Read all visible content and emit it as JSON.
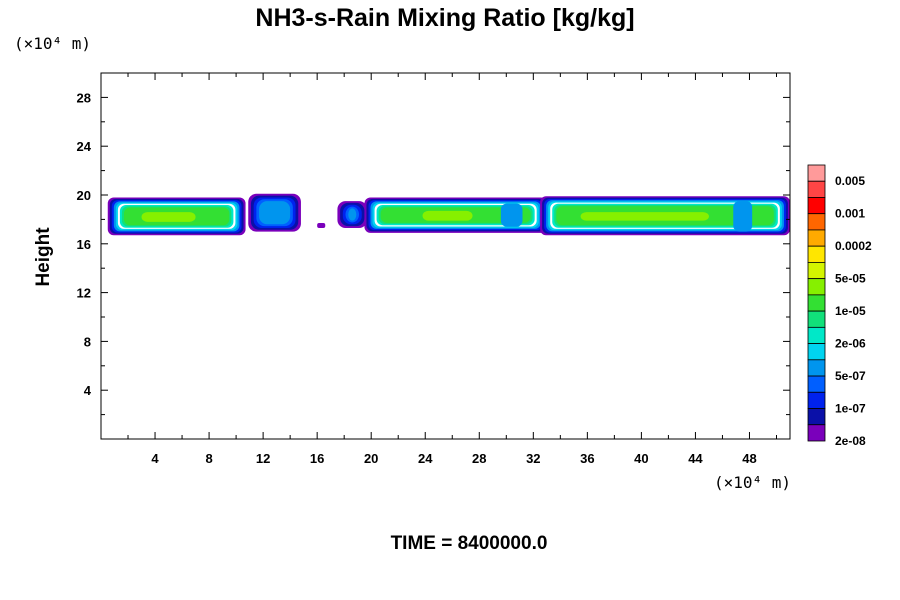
{
  "chart_data": {
    "type": "heatmap",
    "title": "NH3-s-Rain Mixing Ratio [kg/kg]",
    "xlabel": "",
    "ylabel": "Height",
    "x_unit": "(×10⁴ m)",
    "y_unit": "(×10⁴ m)",
    "xlim": [
      0,
      51
    ],
    "ylim": [
      0,
      30
    ],
    "x_ticks": [
      4,
      8,
      12,
      16,
      20,
      24,
      28,
      32,
      36,
      40,
      44,
      48
    ],
    "x_tick_labels": [
      "4",
      "8",
      "12",
      "16",
      "20",
      "24",
      "28",
      "32",
      "36",
      "40",
      "44",
      "48"
    ],
    "y_ticks": [
      4,
      8,
      12,
      16,
      20,
      24,
      28
    ],
    "y_tick_labels": [
      "4",
      "8",
      "12",
      "16",
      "20",
      "24",
      "28"
    ],
    "footer": "TIME = 8400000.0",
    "colorbar": {
      "labels": [
        "0.005",
        "0.001",
        "0.0002",
        "5e-05",
        "1e-05",
        "2e-06",
        "5e-07",
        "1e-07",
        "2e-08"
      ],
      "colors_top_to_bottom": [
        "#ff9a9a",
        "#ff4545",
        "#ff0000",
        "#ff6600",
        "#ffaa00",
        "#ffe600",
        "#d4f500",
        "#86f000",
        "#33e033",
        "#11e07a",
        "#00e8c8",
        "#00d4f0",
        "#0095ee",
        "#005fff",
        "#0022ee",
        "#0a10a8",
        "#7a00bb"
      ]
    },
    "contour_bands": [
      {
        "x": [
          0.5,
          10.7
        ],
        "y": [
          16.7,
          19.8
        ],
        "peak_level": "1e-05"
      },
      {
        "x": [
          10.9,
          14.8
        ],
        "y": [
          17.0,
          20.1
        ],
        "peak_level": "5e-07"
      },
      {
        "x": [
          17.5,
          19.7
        ],
        "y": [
          17.3,
          19.5
        ],
        "peak_level": "5e-07"
      },
      {
        "x": [
          19.5,
          33.0
        ],
        "y": [
          16.9,
          19.8
        ],
        "peak_level": "1e-05"
      },
      {
        "x": [
          32.5,
          51.0
        ],
        "y": [
          16.7,
          19.9
        ],
        "peak_level": "1e-05"
      }
    ]
  }
}
